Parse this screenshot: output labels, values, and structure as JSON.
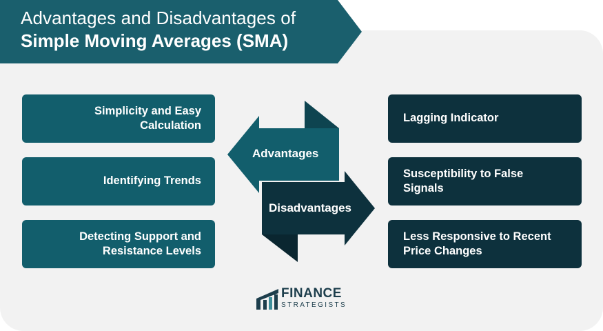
{
  "title": {
    "line1": "Advantages and Disadvantages of",
    "line2": "Simple Moving Averages (SMA)"
  },
  "advantages": {
    "label": "Advantages",
    "items": [
      "Simplicity and Easy Calculation",
      "Identifying Trends",
      "Detecting Support and Resistance Levels"
    ]
  },
  "disadvantages": {
    "label": "Disadvantages",
    "items": [
      "Lagging Indicator",
      "Susceptibility to False Signals",
      "Less Responsive to Recent Price Changes"
    ]
  },
  "logo": {
    "word1": "FINANCE",
    "word2": "STRATEGISTS"
  },
  "colors": {
    "teal": "#125e6c",
    "dark": "#0d313d",
    "banner": "#1a5f6d",
    "panel": "#f2f2f2"
  }
}
